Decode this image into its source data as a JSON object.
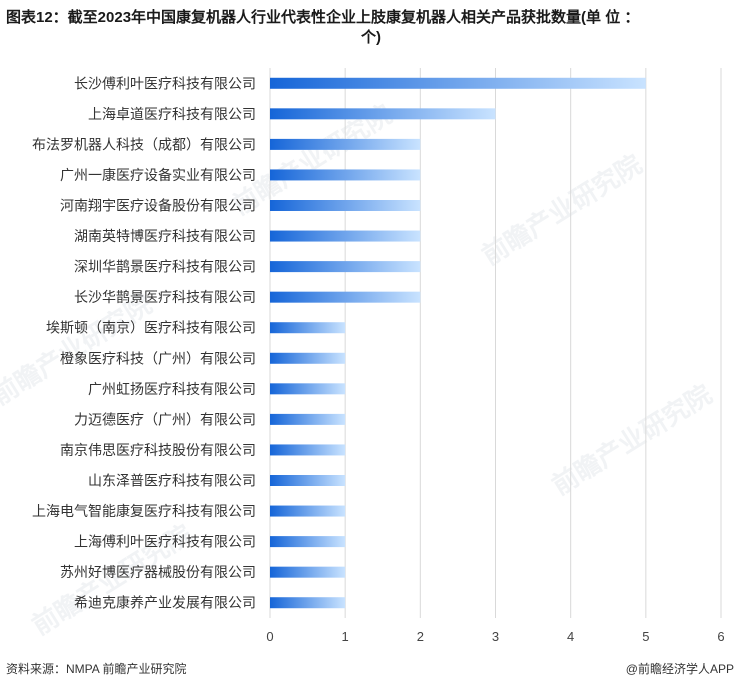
{
  "title": {
    "line1": "图表12：截至2023年中国康复机器人行业代表性企业上肢康复机器人相关产品获批数量(单 位 ：",
    "line2": "个)"
  },
  "footer": {
    "source": "资料来源：NMPA 前瞻产业研究院",
    "brand": "@前瞻经济学人APP"
  },
  "watermark": "前瞻产业研究院",
  "colors": {
    "bar_start": "#1565d8",
    "bar_end": "#c9e3ff",
    "grid": "#d9d9d9"
  },
  "chart_data": {
    "type": "bar",
    "orientation": "horizontal",
    "categories": [
      "长沙傅利叶医疗科技有限公司",
      "上海卓道医疗科技有限公司",
      "布法罗机器人科技（成都）有限公司",
      "广州一康医疗设备实业有限公司",
      "河南翔宇医疗设备股份有限公司",
      "湖南英特博医疗科技有限公司",
      "深圳华鹊景医疗科技有限公司",
      "长沙华鹊景医疗科技有限公司",
      "埃斯顿（南京）医疗科技有限公司",
      "橙象医疗科技（广州）有限公司",
      "广州虹扬医疗科技有限公司",
      "力迈德医疗（广州）有限公司",
      "南京伟思医疗科技股份有限公司",
      "山东泽普医疗科技有限公司",
      "上海电气智能康复医疗科技有限公司",
      "上海傅利叶医疗科技有限公司",
      "苏州好博医疗器械股份有限公司",
      "希迪克康养产业发展有限公司"
    ],
    "values": [
      5,
      3,
      2,
      2,
      2,
      2,
      2,
      2,
      1,
      1,
      1,
      1,
      1,
      1,
      1,
      1,
      1,
      1
    ],
    "xlim": [
      0,
      6
    ],
    "xticks": [
      0,
      1,
      2,
      3,
      4,
      5,
      6
    ],
    "grid": true
  }
}
